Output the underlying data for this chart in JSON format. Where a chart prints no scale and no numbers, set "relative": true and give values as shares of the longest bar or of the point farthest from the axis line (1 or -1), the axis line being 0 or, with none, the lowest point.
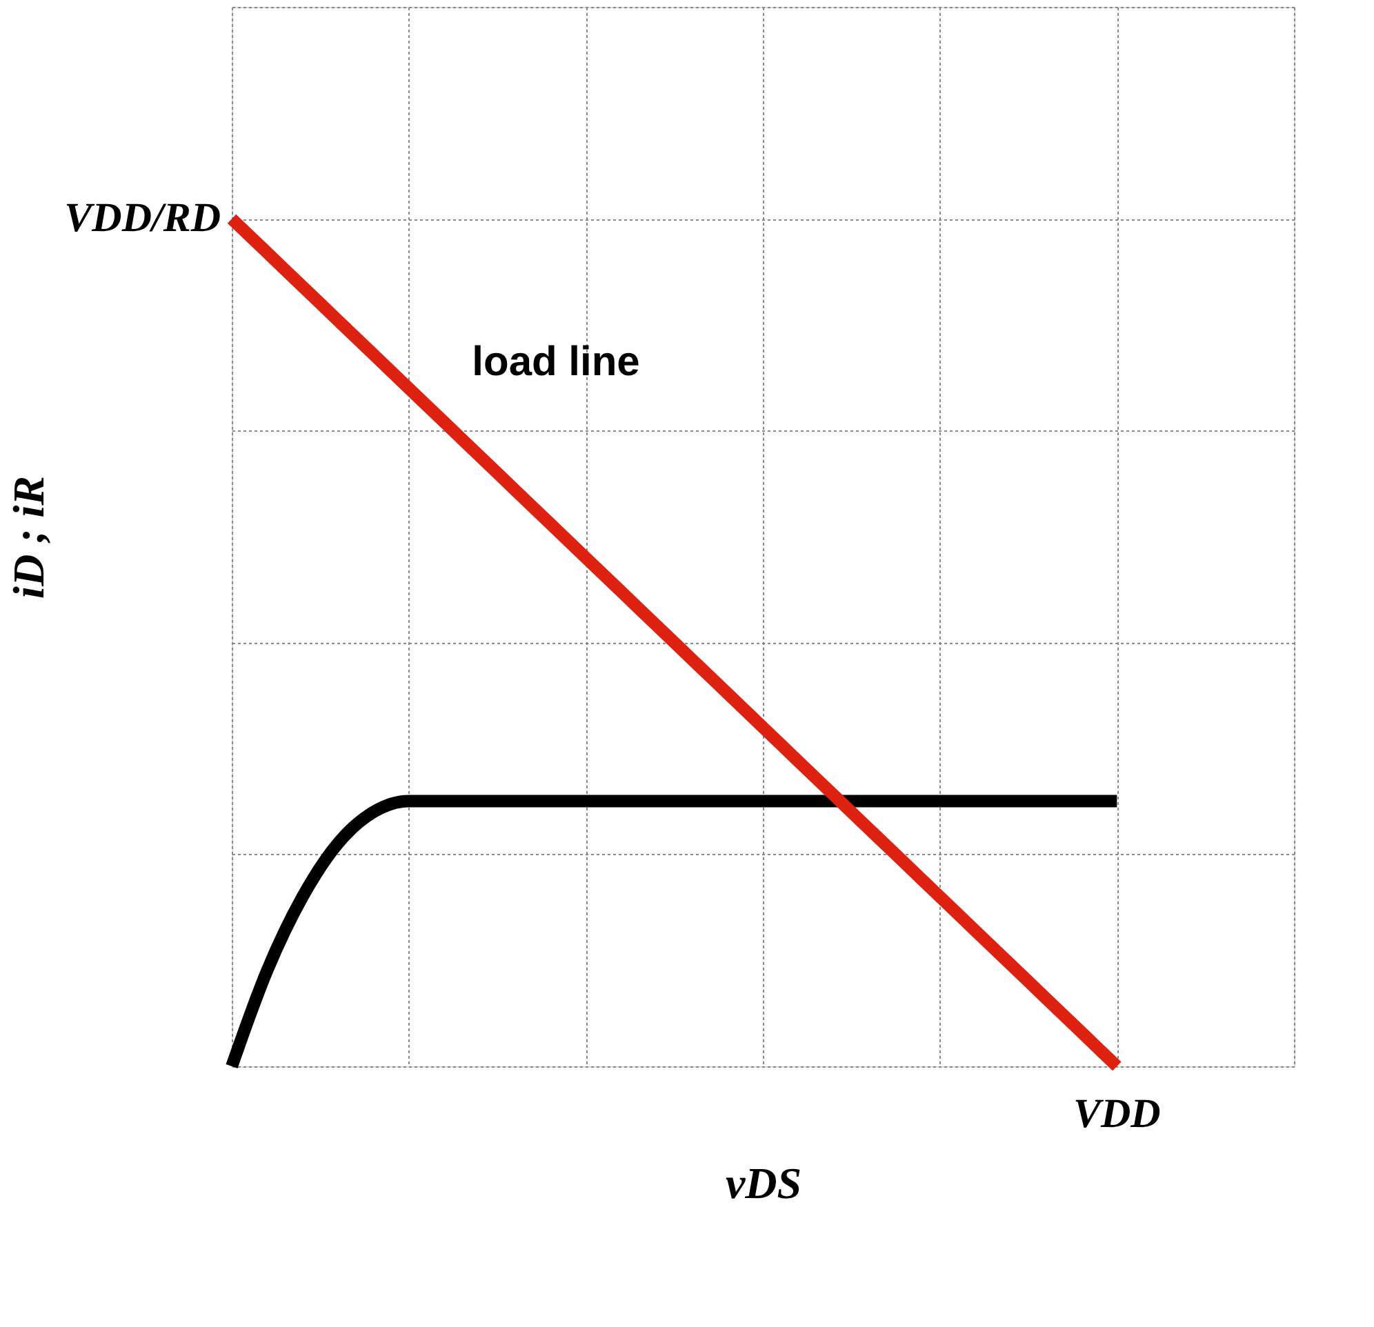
{
  "chart_data": {
    "type": "line",
    "relative": true,
    "xlabel": "vDS",
    "ylabel": "iD ; iR",
    "grid": true,
    "categories": [
      null,
      null,
      null,
      null,
      null,
      null,
      null,
      null,
      null,
      null,
      null,
      null,
      null,
      null,
      null,
      null,
      null,
      null,
      null,
      null,
      null,
      null,
      null,
      null,
      null,
      null,
      null,
      null,
      null,
      null,
      null
    ],
    "series": [
      {
        "color": "#000000",
        "values": [
          0,
          0.113,
          0.2,
          0.263,
          0.3,
          0.313,
          0.313,
          0.313,
          0.313,
          0.313,
          0.313,
          0.313,
          0.313,
          0.313,
          0.313,
          0.313,
          0.313,
          0.313,
          0.313,
          0.313,
          0.313,
          0.313,
          0.313,
          0.313,
          0.313,
          0.313,
          null,
          null,
          null,
          null,
          null
        ]
      },
      {
        "color": "#dd2211",
        "values": [
          1,
          0.96,
          0.92,
          0.88,
          0.84,
          0.8,
          0.76,
          0.72,
          0.68,
          0.64,
          0.6,
          0.56,
          0.52,
          0.48,
          0.44,
          0.4,
          0.36,
          0.32,
          0.28,
          0.24,
          0.2,
          0.16,
          0.12,
          0.08,
          0.04,
          0,
          null,
          null,
          null,
          null,
          null
        ]
      }
    ],
    "annotations": [
      "load line",
      "VDD/RD",
      "VDD"
    ]
  }
}
